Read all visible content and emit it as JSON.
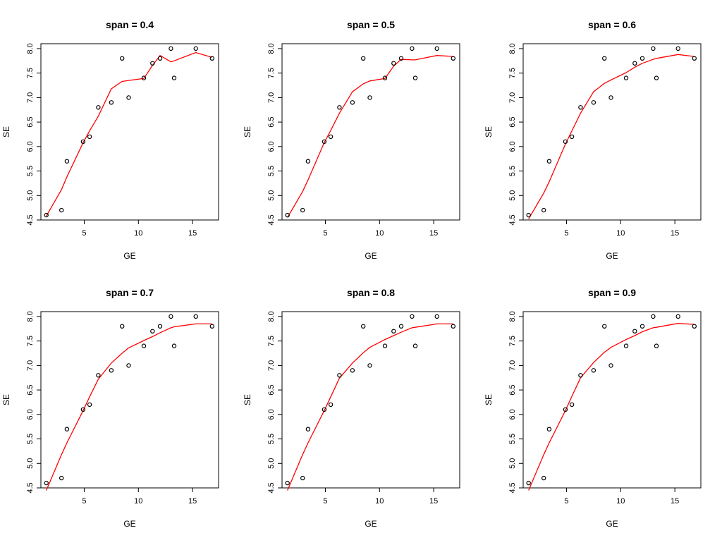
{
  "chart_data": [
    {
      "type": "scatter",
      "title": "span = 0.4",
      "xlabel": "GE",
      "ylabel": "SE",
      "xlim": [
        1.0,
        17.4
      ],
      "ylim": [
        4.5,
        8.1
      ],
      "xticks": [
        "5",
        "10",
        "15"
      ],
      "yticks": [
        "4.5",
        "5.0",
        "5.5",
        "6.0",
        "6.5",
        "7.0",
        "7.5",
        "8.0"
      ],
      "points": {
        "x": [
          1.5,
          2.9,
          3.4,
          4.9,
          5.5,
          6.3,
          7.5,
          8.5,
          9.1,
          10.5,
          11.3,
          12.0,
          13.0,
          13.3,
          15.3,
          16.8
        ],
        "y": [
          4.6,
          4.7,
          5.7,
          6.1,
          6.2,
          6.8,
          6.9,
          7.8,
          7.0,
          7.4,
          7.7,
          7.8,
          8.0,
          7.4,
          8.0,
          7.8
        ]
      },
      "series": [
        {
          "name": "loess fit",
          "x": [
            1.5,
            2.9,
            3.4,
            4.9,
            5.5,
            6.3,
            7.5,
            8.5,
            9.1,
            10.5,
            11.3,
            12.0,
            13.0,
            13.3,
            15.3,
            16.8
          ],
          "y": [
            4.58,
            5.12,
            5.38,
            6.08,
            6.32,
            6.62,
            7.18,
            7.33,
            7.35,
            7.39,
            7.66,
            7.86,
            7.73,
            7.75,
            7.92,
            7.82
          ]
        }
      ]
    },
    {
      "type": "scatter",
      "title": "span = 0.5",
      "xlabel": "GE",
      "ylabel": "SE",
      "xlim": [
        1.0,
        17.4
      ],
      "ylim": [
        4.5,
        8.1
      ],
      "xticks": [
        "5",
        "10",
        "15"
      ],
      "yticks": [
        "4.5",
        "5.0",
        "5.5",
        "6.0",
        "6.5",
        "7.0",
        "7.5",
        "8.0"
      ],
      "points": {
        "x": [
          1.5,
          2.9,
          3.4,
          4.9,
          5.5,
          6.3,
          7.5,
          8.5,
          9.1,
          10.5,
          11.3,
          12.0,
          13.0,
          13.3,
          15.3,
          16.8
        ],
        "y": [
          4.6,
          4.7,
          5.7,
          6.1,
          6.2,
          6.8,
          6.9,
          7.8,
          7.0,
          7.4,
          7.7,
          7.8,
          8.0,
          7.4,
          8.0,
          7.8
        ]
      },
      "series": [
        {
          "name": "loess fit",
          "x": [
            1.5,
            2.9,
            3.4,
            4.9,
            5.5,
            6.3,
            7.5,
            8.5,
            9.1,
            10.5,
            11.3,
            12.0,
            13.0,
            13.3,
            15.3,
            16.8
          ],
          "y": [
            4.55,
            5.08,
            5.32,
            6.08,
            6.33,
            6.68,
            7.12,
            7.28,
            7.34,
            7.39,
            7.64,
            7.78,
            7.77,
            7.77,
            7.86,
            7.84
          ]
        }
      ]
    },
    {
      "type": "scatter",
      "title": "span = 0.6",
      "xlabel": "GE",
      "ylabel": "SE",
      "xlim": [
        1.0,
        17.4
      ],
      "ylim": [
        4.5,
        8.1
      ],
      "xticks": [
        "5",
        "10",
        "15"
      ],
      "yticks": [
        "4.5",
        "5.0",
        "5.5",
        "6.0",
        "6.5",
        "7.0",
        "7.5",
        "8.0"
      ],
      "points": {
        "x": [
          1.5,
          2.9,
          3.4,
          4.9,
          5.5,
          6.3,
          7.5,
          8.5,
          9.1,
          10.5,
          11.3,
          12.0,
          13.0,
          13.3,
          15.3,
          16.8
        ],
        "y": [
          4.6,
          4.7,
          5.7,
          6.1,
          6.2,
          6.8,
          6.9,
          7.8,
          7.0,
          7.4,
          7.7,
          7.8,
          8.0,
          7.4,
          8.0,
          7.8
        ]
      },
      "series": [
        {
          "name": "loess fit",
          "x": [
            1.5,
            2.9,
            3.4,
            4.9,
            5.5,
            6.3,
            7.5,
            8.5,
            9.1,
            10.5,
            11.3,
            12.0,
            13.0,
            13.3,
            15.3,
            16.8
          ],
          "y": [
            4.52,
            5.05,
            5.28,
            6.05,
            6.32,
            6.68,
            7.12,
            7.29,
            7.36,
            7.51,
            7.62,
            7.7,
            7.78,
            7.8,
            7.88,
            7.84
          ]
        }
      ]
    },
    {
      "type": "scatter",
      "title": "span = 0.7",
      "xlabel": "GE",
      "ylabel": "SE",
      "xlim": [
        1.0,
        17.4
      ],
      "ylim": [
        4.5,
        8.1
      ],
      "xticks": [
        "5",
        "10",
        "15"
      ],
      "yticks": [
        "4.5",
        "5.0",
        "5.5",
        "6.0",
        "6.5",
        "7.0",
        "7.5",
        "8.0"
      ],
      "points": {
        "x": [
          1.5,
          2.9,
          3.4,
          4.9,
          5.5,
          6.3,
          7.5,
          8.5,
          9.1,
          10.5,
          11.3,
          12.0,
          13.0,
          13.3,
          15.3,
          16.8
        ],
        "y": [
          4.6,
          4.7,
          5.7,
          6.1,
          6.2,
          6.8,
          6.9,
          7.8,
          7.0,
          7.4,
          7.7,
          7.8,
          8.0,
          7.4,
          8.0,
          7.8
        ]
      },
      "series": [
        {
          "name": "loess fit",
          "x": [
            1.5,
            2.9,
            3.4,
            4.9,
            5.5,
            6.3,
            7.5,
            8.5,
            9.1,
            10.5,
            11.3,
            12.0,
            13.0,
            13.3,
            15.3,
            16.8
          ],
          "y": [
            4.45,
            5.18,
            5.42,
            6.08,
            6.36,
            6.72,
            7.05,
            7.25,
            7.36,
            7.51,
            7.59,
            7.67,
            7.77,
            7.79,
            7.85,
            7.85
          ]
        }
      ]
    },
    {
      "type": "scatter",
      "title": "span = 0.8",
      "xlabel": "GE",
      "ylabel": "SE",
      "xlim": [
        1.0,
        17.4
      ],
      "ylim": [
        4.5,
        8.1
      ],
      "xticks": [
        "5",
        "10",
        "15"
      ],
      "yticks": [
        "4.5",
        "5.0",
        "5.5",
        "6.0",
        "6.5",
        "7.0",
        "7.5",
        "8.0"
      ],
      "points": {
        "x": [
          1.5,
          2.9,
          3.4,
          4.9,
          5.5,
          6.3,
          7.5,
          8.5,
          9.1,
          10.5,
          11.3,
          12.0,
          13.0,
          13.3,
          15.3,
          16.8
        ],
        "y": [
          4.6,
          4.7,
          5.7,
          6.1,
          6.2,
          6.8,
          6.9,
          7.8,
          7.0,
          7.4,
          7.7,
          7.8,
          8.0,
          7.4,
          8.0,
          7.8
        ]
      },
      "series": [
        {
          "name": "loess fit",
          "x": [
            1.5,
            2.9,
            3.4,
            4.9,
            5.5,
            6.3,
            7.5,
            8.5,
            9.1,
            10.5,
            11.3,
            12.0,
            13.0,
            13.3,
            15.3,
            16.8
          ],
          "y": [
            4.45,
            5.18,
            5.42,
            6.08,
            6.36,
            6.74,
            7.05,
            7.26,
            7.37,
            7.53,
            7.61,
            7.68,
            7.77,
            7.78,
            7.85,
            7.85
          ]
        }
      ]
    },
    {
      "type": "scatter",
      "title": "span = 0.9",
      "xlabel": "GE",
      "ylabel": "SE",
      "xlim": [
        1.0,
        17.4
      ],
      "ylim": [
        4.5,
        8.1
      ],
      "xticks": [
        "5",
        "10",
        "15"
      ],
      "yticks": [
        "4.5",
        "5.0",
        "5.5",
        "6.0",
        "6.5",
        "7.0",
        "7.5",
        "8.0"
      ],
      "points": {
        "x": [
          1.5,
          2.9,
          3.4,
          4.9,
          5.5,
          6.3,
          7.5,
          8.5,
          9.1,
          10.5,
          11.3,
          12.0,
          13.0,
          13.3,
          15.3,
          16.8
        ],
        "y": [
          4.6,
          4.7,
          5.7,
          6.1,
          6.2,
          6.8,
          6.9,
          7.8,
          7.0,
          7.4,
          7.7,
          7.8,
          8.0,
          7.4,
          8.0,
          7.8
        ]
      },
      "series": [
        {
          "name": "loess fit",
          "x": [
            1.5,
            2.9,
            3.4,
            4.9,
            5.5,
            6.3,
            7.5,
            8.5,
            9.1,
            10.5,
            11.3,
            12.0,
            13.0,
            13.3,
            15.3,
            16.8
          ],
          "y": [
            4.45,
            5.18,
            5.42,
            6.08,
            6.37,
            6.75,
            7.06,
            7.27,
            7.37,
            7.53,
            7.61,
            7.69,
            7.77,
            7.78,
            7.86,
            7.84
          ]
        }
      ]
    }
  ]
}
